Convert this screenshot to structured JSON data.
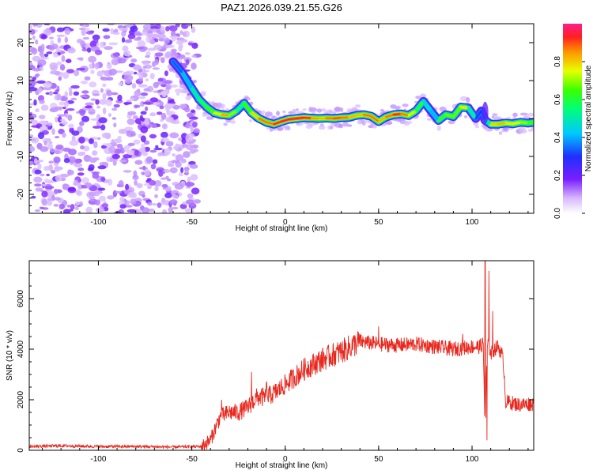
{
  "title": "PAZ1.2026.039.21.55.G26",
  "chart_data": [
    {
      "type": "heatmap",
      "xlabel": "Height of straight line (km)",
      "ylabel": "Frequency (Hz)",
      "xlim": [
        -137,
        133
      ],
      "ylim": [
        -25,
        25
      ],
      "xticks": [
        -100,
        -50,
        0,
        50,
        100
      ],
      "yticks": [
        -20,
        -10,
        0,
        10,
        20
      ],
      "colorbar": {
        "label": "Normalized spectral amplitude",
        "range": [
          0,
          1
        ],
        "ticks": [
          "0.0",
          "0.2",
          "0.4",
          "0.6",
          "0.8"
        ],
        "tick_values": [
          0,
          0.2,
          0.4,
          0.6,
          0.8
        ]
      },
      "noise_region": [
        -137,
        -47
      ],
      "ridge": {
        "x": [
          -60,
          -55,
          -50,
          -46,
          -42,
          -38,
          -34,
          -30,
          -26,
          -22,
          -18,
          -14,
          -10,
          -6,
          -2,
          2,
          6,
          10,
          14,
          18,
          22,
          26,
          30,
          34,
          38,
          42,
          46,
          50,
          54,
          58,
          62,
          66,
          70,
          74,
          78,
          82,
          86,
          90,
          94,
          98,
          102,
          105,
          107,
          110,
          114,
          118,
          122,
          126,
          130,
          133
        ],
        "freq": [
          15,
          12,
          8,
          5,
          3,
          1.5,
          1,
          0.8,
          2,
          4,
          1.5,
          0,
          -1,
          -1.5,
          -0.8,
          -0.2,
          0,
          0.2,
          0.1,
          0,
          0.1,
          0,
          0.2,
          0.3,
          0.8,
          1,
          0.6,
          -0.8,
          0.4,
          1,
          1.2,
          0.8,
          2,
          4.5,
          2,
          -0.5,
          1,
          0.5,
          3,
          2.8,
          0,
          2,
          -0.5,
          -1.5,
          -1.5,
          -1.2,
          -1.4,
          -1,
          -1.2,
          -1
        ],
        "amplitude": [
          0.3,
          0.35,
          0.45,
          0.55,
          0.6,
          0.7,
          0.8,
          0.9,
          0.5,
          0.6,
          0.7,
          0.9,
          0.85,
          0.9,
          0.95,
          0.95,
          0.95,
          0.95,
          0.9,
          0.8,
          0.85,
          0.9,
          0.9,
          0.85,
          0.8,
          0.85,
          0.9,
          0.85,
          0.8,
          0.95,
          0.95,
          0.8,
          0.7,
          0.5,
          0.4,
          0.4,
          0.85,
          0.5,
          0.85,
          0.7,
          0.3,
          0.3,
          0.3,
          0.7,
          0.9,
          0.75,
          0.8,
          0.7,
          0.7,
          0.6
        ]
      }
    },
    {
      "type": "line",
      "xlabel": "Height of straight line (km)",
      "ylabel": "SNR (10 * v/v)",
      "xlim": [
        -137,
        133
      ],
      "ylim": [
        0,
        7500
      ],
      "xticks": [
        -100,
        -50,
        0,
        50,
        100
      ],
      "yticks": [
        0,
        2000,
        4000,
        6000
      ],
      "color": "#e8281e",
      "envelope": {
        "x": [
          -137,
          -120,
          -100,
          -80,
          -60,
          -45,
          -40,
          -35,
          -30,
          -25,
          -20,
          -15,
          -10,
          -5,
          0,
          10,
          20,
          30,
          40,
          50,
          60,
          70,
          80,
          90,
          100,
          104,
          106,
          107,
          108,
          109,
          110,
          112,
          114,
          116,
          117,
          118,
          120,
          125,
          133
        ],
        "y": [
          150,
          180,
          150,
          150,
          130,
          150,
          400,
          1300,
          1500,
          1500,
          1700,
          2100,
          2100,
          2300,
          2600,
          3200,
          3600,
          3900,
          4300,
          4200,
          4150,
          4200,
          4100,
          4000,
          4100,
          4100,
          4200,
          400,
          4000,
          4200,
          3800,
          4000,
          4100,
          3800,
          3300,
          1900,
          1900,
          1800,
          1850
        ]
      },
      "spikes": [
        {
          "x": -34,
          "y": 2000
        },
        {
          "x": -18,
          "y": 3100
        },
        {
          "x": -10,
          "y": 2700
        },
        {
          "x": 50,
          "y": 4900
        },
        {
          "x": 95,
          "y": 4600
        },
        {
          "x": 107,
          "y": 7600
        },
        {
          "x": 108,
          "y": 400
        },
        {
          "x": 109,
          "y": 7100
        },
        {
          "x": 111,
          "y": 5500
        }
      ]
    }
  ]
}
